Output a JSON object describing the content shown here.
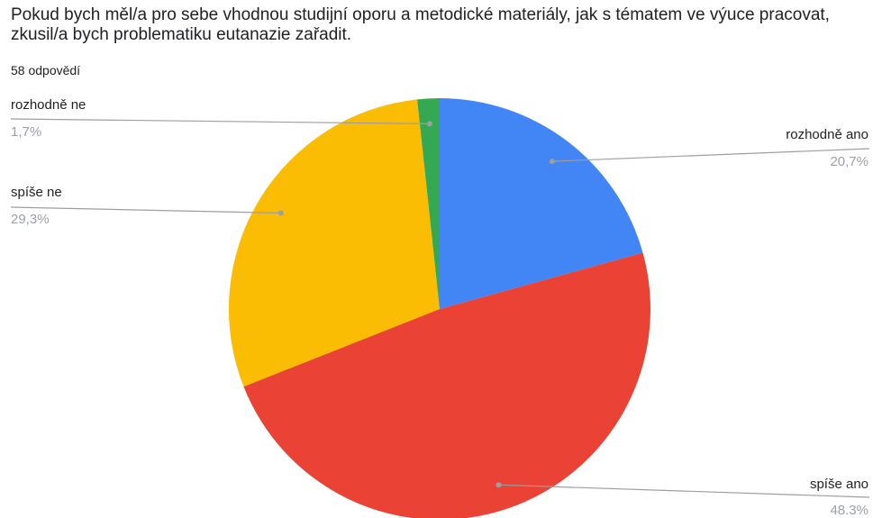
{
  "title": "Pokud bych měl/a pro sebe vhodnou studijní oporu a metodické materiály, jak s tématem ve výuce pracovat, zkusil/a bych problematiku eutanazie zařadit.",
  "response_count": "58 odpovědí",
  "chart_data": {
    "type": "pie",
    "categories": [
      "rozhodně ano",
      "spíše ano",
      "spíše ne",
      "rozhodně ne"
    ],
    "values": [
      20.7,
      48.3,
      29.3,
      1.7
    ],
    "value_labels": [
      "20,7%",
      "48.3%",
      "29,3%",
      "1,7%"
    ],
    "colors": [
      "#4285f4",
      "#ea4335",
      "#fbbc04",
      "#34a853"
    ],
    "start_angle": "top, clockwise"
  }
}
